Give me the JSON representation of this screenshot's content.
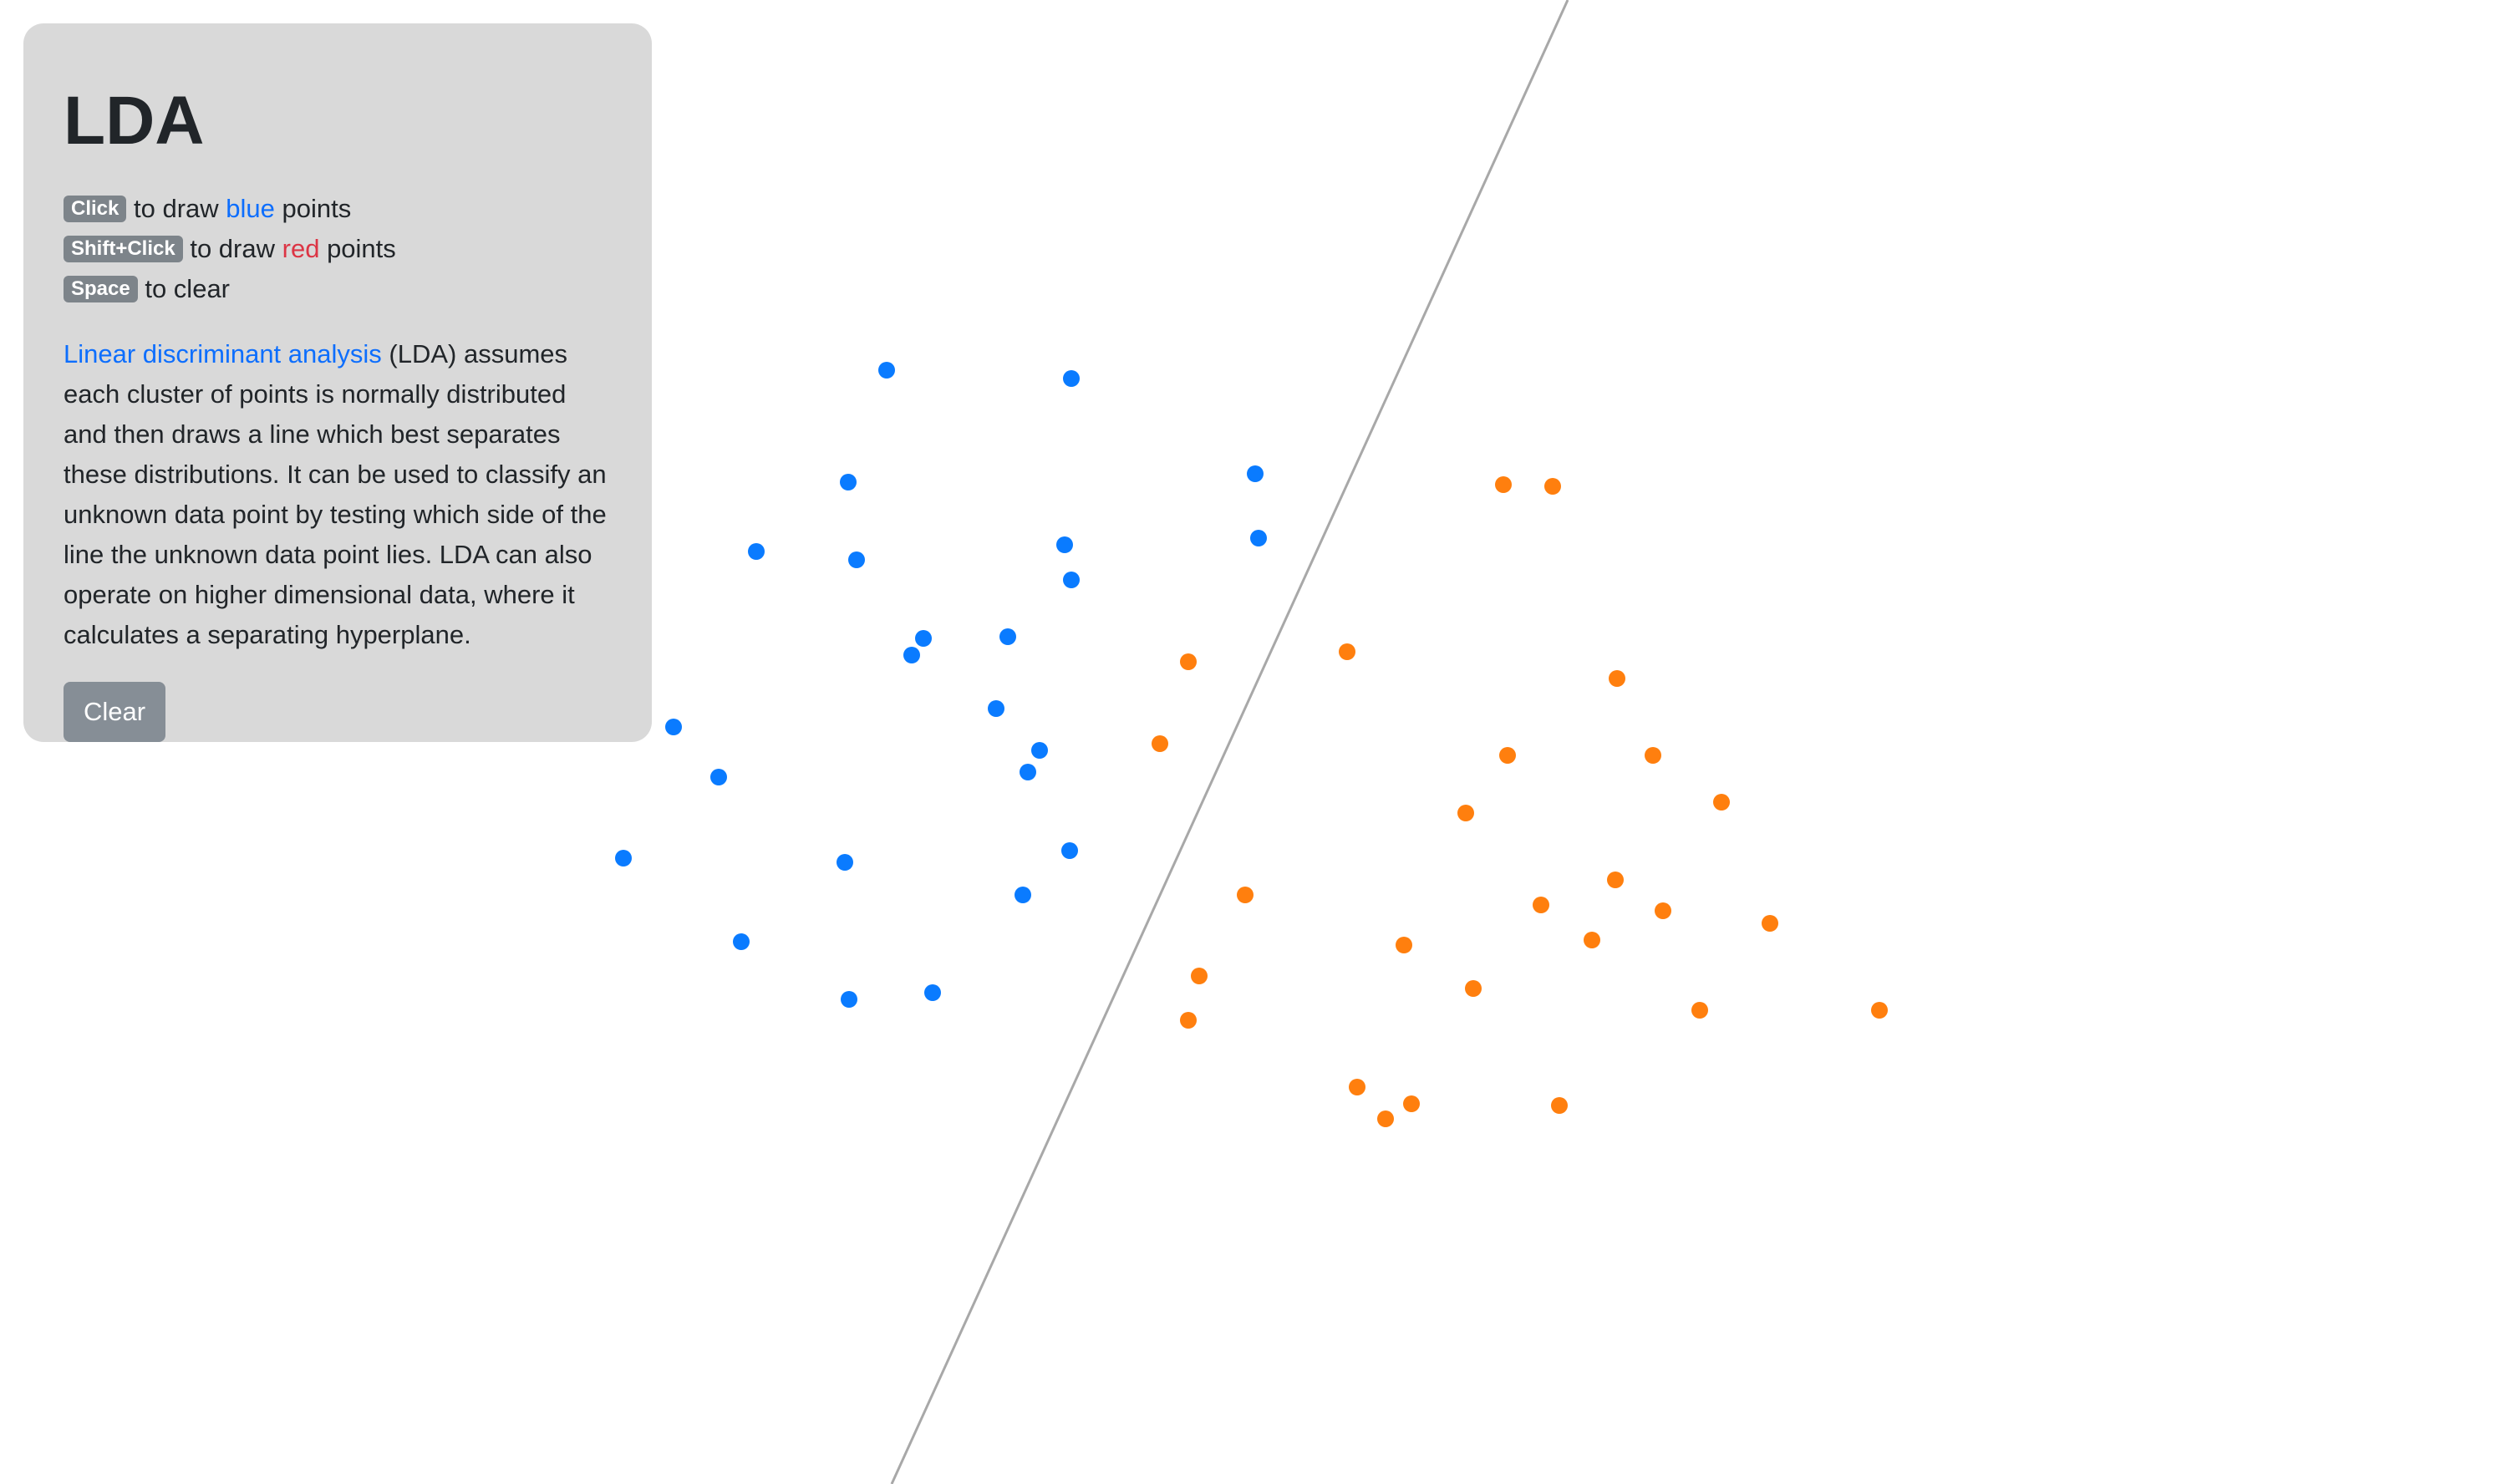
{
  "panel": {
    "title": "LDA",
    "instructions": [
      {
        "key": "Click",
        "pre": "to draw",
        "color_word": "blue",
        "post": "points",
        "color": "#0d6efd"
      },
      {
        "key": "Shift+Click",
        "pre": "to draw",
        "color_word": "red",
        "post": "points",
        "color": "#dc3545"
      },
      {
        "key": "Space",
        "text": "to clear"
      }
    ],
    "description_link": "Linear discriminant analysis",
    "description_text": "(LDA) assumes each cluster of points is normally distributed and then draws a line which best separates these distributions. It can be used to classify an unknown data point by testing which side of the line the unknown data point lies. LDA can also operate on higher dimensional data, where it calculates a separating hyperplane.",
    "clear_label": "Clear"
  },
  "colors": {
    "blue_points": "#0a7bff",
    "red_points": "#ff7f0e",
    "separator_line": "#a8a8a8",
    "panel_bg": "#d9d9d9"
  }
}
